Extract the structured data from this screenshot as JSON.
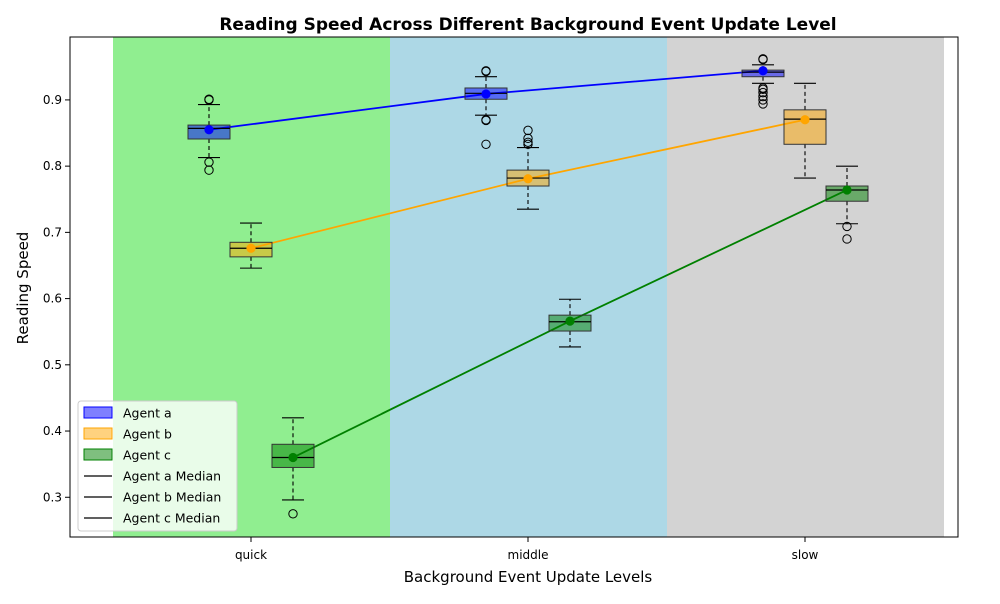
{
  "chart_data": {
    "type": "box",
    "title": "Reading Speed Across Different Background Event Update Level",
    "xlabel": "Background Event Update Levels",
    "ylabel": "Reading Speed",
    "categories": [
      "quick",
      "middle",
      "slow"
    ],
    "ylim": [
      0.24,
      0.995
    ],
    "yticks": [
      0.3,
      0.4,
      0.5,
      0.6,
      0.7,
      0.8,
      0.9
    ],
    "ytick_labels": [
      "0.3",
      "0.4",
      "0.5",
      "0.6",
      "0.7",
      "0.8",
      "0.9"
    ],
    "category_band_colors": [
      "#90ee90",
      "#add8e6",
      "#d3d3d3"
    ],
    "legend_position": "lower-left",
    "legend": [
      {
        "label": "Agent a",
        "kind": "patch",
        "color": "#0000ff"
      },
      {
        "label": "Agent b",
        "kind": "patch",
        "color": "#ffa500"
      },
      {
        "label": "Agent c",
        "kind": "patch",
        "color": "#008000"
      },
      {
        "label": "Agent a Median",
        "kind": "line",
        "color": "#000000"
      },
      {
        "label": "Agent b Median",
        "kind": "line",
        "color": "#000000"
      },
      {
        "label": "Agent c Median",
        "kind": "line",
        "color": "#000000"
      }
    ],
    "series": [
      {
        "name": "Agent a",
        "color": "#0000ff",
        "boxes": [
          {
            "category": "quick",
            "whisker_low": 0.813,
            "q1": 0.841,
            "median": 0.857,
            "q3": 0.862,
            "whisker_high": 0.893,
            "mean": 0.855,
            "outliers": [
              0.9,
              0.901,
              0.806,
              0.794
            ]
          },
          {
            "category": "middle",
            "whisker_low": 0.877,
            "q1": 0.901,
            "median": 0.91,
            "q3": 0.918,
            "whisker_high": 0.935,
            "mean": 0.909,
            "outliers": [
              0.943,
              0.944,
              0.87,
              0.869,
              0.833
            ]
          },
          {
            "category": "slow",
            "whisker_low": 0.925,
            "q1": 0.935,
            "median": 0.942,
            "q3": 0.945,
            "whisker_high": 0.953,
            "mean": 0.944,
            "outliers": [
              0.962,
              0.961,
              0.918,
              0.916,
              0.911,
              0.905,
              0.9,
              0.894
            ]
          }
        ]
      },
      {
        "name": "Agent b",
        "color": "#ffa500",
        "boxes": [
          {
            "category": "quick",
            "whisker_low": 0.646,
            "q1": 0.663,
            "median": 0.676,
            "q3": 0.685,
            "whisker_high": 0.714,
            "mean": 0.676,
            "outliers": []
          },
          {
            "category": "middle",
            "whisker_low": 0.735,
            "q1": 0.77,
            "median": 0.782,
            "q3": 0.794,
            "whisker_high": 0.828,
            "mean": 0.781,
            "outliers": [
              0.854,
              0.842,
              0.836,
              0.833
            ]
          },
          {
            "category": "slow",
            "whisker_low": 0.782,
            "q1": 0.833,
            "median": 0.871,
            "q3": 0.885,
            "whisker_high": 0.925,
            "mean": 0.87,
            "outliers": []
          }
        ]
      },
      {
        "name": "Agent c",
        "color": "#008000",
        "boxes": [
          {
            "category": "quick",
            "whisker_low": 0.296,
            "q1": 0.345,
            "median": 0.36,
            "q3": 0.38,
            "whisker_high": 0.42,
            "mean": 0.36,
            "outliers": [
              0.275
            ]
          },
          {
            "category": "middle",
            "whisker_low": 0.527,
            "q1": 0.551,
            "median": 0.565,
            "q3": 0.575,
            "whisker_high": 0.599,
            "mean": 0.566,
            "outliers": []
          },
          {
            "category": "slow",
            "whisker_low": 0.713,
            "q1": 0.747,
            "median": 0.764,
            "q3": 0.77,
            "whisker_high": 0.8,
            "mean": 0.764,
            "outliers": [
              0.709,
              0.69
            ]
          }
        ]
      }
    ]
  }
}
